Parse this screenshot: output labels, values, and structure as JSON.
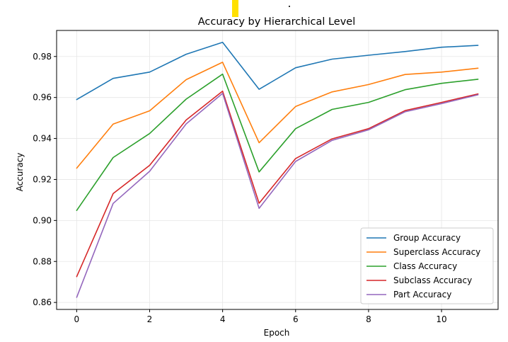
{
  "chart_data": {
    "type": "line",
    "title": "Accuracy by Hierarchical Level",
    "xlabel": "Epoch",
    "ylabel": "Accuracy",
    "x": [
      0,
      1,
      2,
      3,
      4,
      5,
      6,
      7,
      8,
      9,
      10,
      11
    ],
    "xlim": [
      -0.55,
      11.55
    ],
    "ylim": [
      0.8566,
      0.9927
    ],
    "xticks": [
      "0",
      "2",
      "4",
      "6",
      "8",
      "10"
    ],
    "yticks": [
      "0.86",
      "0.88",
      "0.90",
      "0.92",
      "0.94",
      "0.96",
      "0.98"
    ],
    "grid": true,
    "legend_position": "lower right",
    "series": [
      {
        "name": "Group Accuracy",
        "color": "#1f77b4",
        "values": [
          0.959,
          0.9693,
          0.9724,
          0.9811,
          0.9869,
          0.964,
          0.9745,
          0.9787,
          0.9806,
          0.9824,
          0.9845,
          0.9854
        ]
      },
      {
        "name": "Superclass Accuracy",
        "color": "#ff7f0e",
        "values": [
          0.9255,
          0.947,
          0.9535,
          0.9687,
          0.9772,
          0.9379,
          0.9556,
          0.9627,
          0.9663,
          0.9712,
          0.9724,
          0.9743
        ]
      },
      {
        "name": "Class Accuracy",
        "color": "#2ca02c",
        "values": [
          0.9049,
          0.9307,
          0.9424,
          0.9592,
          0.9714,
          0.9237,
          0.9448,
          0.9542,
          0.9576,
          0.9638,
          0.9669,
          0.9689
        ]
      },
      {
        "name": "Subclass Accuracy",
        "color": "#d62728",
        "values": [
          0.8726,
          0.9131,
          0.9269,
          0.949,
          0.9631,
          0.9084,
          0.9302,
          0.9398,
          0.9448,
          0.9536,
          0.9576,
          0.9617
        ]
      },
      {
        "name": "Part Accuracy",
        "color": "#9467bd",
        "values": [
          0.8625,
          0.9083,
          0.924,
          0.9471,
          0.962,
          0.9059,
          0.9288,
          0.9391,
          0.9442,
          0.953,
          0.957,
          0.9613
        ]
      }
    ]
  }
}
